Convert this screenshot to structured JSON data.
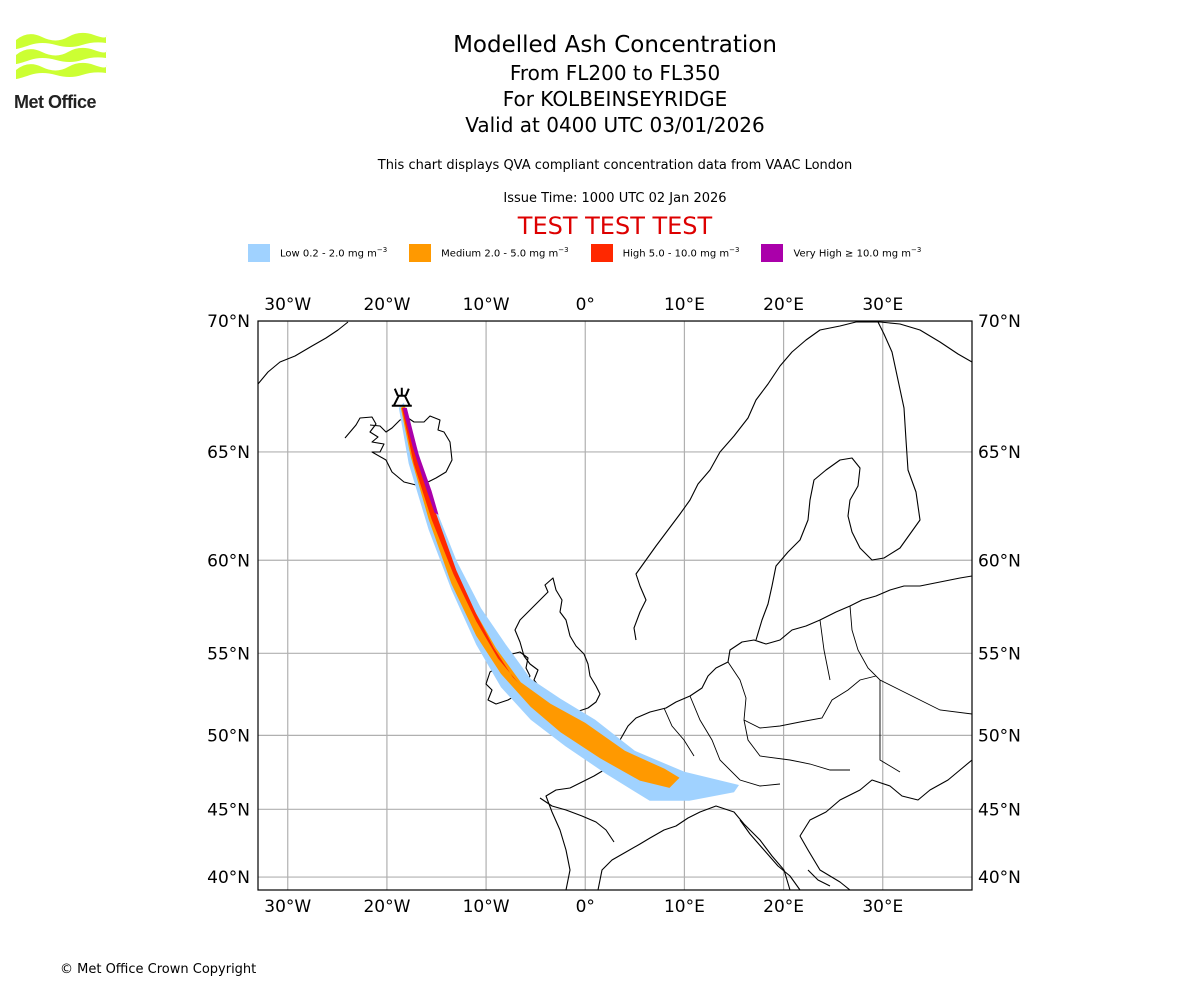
{
  "logo": {
    "text": "Met Office",
    "color": "#ccff33"
  },
  "header": {
    "title": "Modelled Ash Concentration",
    "levels": "From FL200 to FL350",
    "volcano": "For KOLBEINSEYRIDGE",
    "valid": "Valid at 0400 UTC 03/01/2026",
    "description": "This chart displays QVA compliant concentration data from VAAC London",
    "issue_time": "Issue Time: 1000 UTC 02 Jan 2026",
    "test_banner": "TEST TEST TEST"
  },
  "legend": [
    {
      "label": "Low 0.2 - 2.0 mg m",
      "unit_exp": "−3",
      "color": "#a0d2ff"
    },
    {
      "label": "Medium 2.0 - 5.0 mg m",
      "unit_exp": "−3",
      "color": "#ff9900"
    },
    {
      "label": "High 5.0 - 10.0 mg m",
      "unit_exp": "−3",
      "color": "#ff2800"
    },
    {
      "label": "Very High  ≥  10.0 mg m",
      "unit_exp": "−3",
      "color": "#aa00aa"
    }
  ],
  "map": {
    "lon_range": [
      -33,
      39
    ],
    "lat_range": [
      39,
      70
    ],
    "lon_ticks": [
      {
        "value": -30,
        "label": "30°W"
      },
      {
        "value": -20,
        "label": "20°W"
      },
      {
        "value": -10,
        "label": "10°W"
      },
      {
        "value": 0,
        "label": "0°"
      },
      {
        "value": 10,
        "label": "10°E"
      },
      {
        "value": 20,
        "label": "20°E"
      },
      {
        "value": 30,
        "label": "30°E"
      }
    ],
    "lat_ticks": [
      {
        "value": 70,
        "label": "70°N"
      },
      {
        "value": 65,
        "label": "65°N"
      },
      {
        "value": 60,
        "label": "60°N"
      },
      {
        "value": 55,
        "label": "55°N"
      },
      {
        "value": 50,
        "label": "50°N"
      },
      {
        "value": 45,
        "label": "45°N"
      },
      {
        "value": 40,
        "label": "40°N"
      }
    ],
    "volcano_location": {
      "lat": 67.2,
      "lon": -18.5,
      "icon": "volcano-icon"
    },
    "plume": {
      "low": [
        [
          -18.3,
          67.0
        ],
        [
          -17.2,
          65.5
        ],
        [
          -15.5,
          63.0
        ],
        [
          -13.0,
          60.0
        ],
        [
          -10.5,
          57.5
        ],
        [
          -8.0,
          55.5
        ],
        [
          -5.5,
          53.5
        ],
        [
          -2.5,
          52.3
        ],
        [
          1.0,
          51.0
        ],
        [
          5.0,
          49.0
        ],
        [
          10.0,
          47.6
        ],
        [
          15.5,
          46.7
        ],
        [
          15.0,
          46.2
        ],
        [
          10.5,
          45.6
        ],
        [
          6.5,
          45.6
        ],
        [
          2.0,
          47.5
        ],
        [
          -2.0,
          49.3
        ],
        [
          -5.5,
          51.0
        ],
        [
          -8.5,
          53.0
        ],
        [
          -11.0,
          55.5
        ],
        [
          -13.5,
          58.5
        ],
        [
          -15.8,
          61.5
        ],
        [
          -17.8,
          64.5
        ],
        [
          -18.8,
          66.8
        ]
      ],
      "medium": [
        [
          -18.2,
          66.9
        ],
        [
          -17.3,
          65.3
        ],
        [
          -15.7,
          62.8
        ],
        [
          -13.5,
          59.8
        ],
        [
          -11.3,
          57.5
        ],
        [
          -9.0,
          55.3
        ],
        [
          -6.5,
          53.3
        ],
        [
          -3.5,
          52.0
        ],
        [
          0.0,
          50.8
        ],
        [
          4.0,
          49.0
        ],
        [
          8.0,
          47.8
        ],
        [
          9.5,
          47.2
        ],
        [
          8.5,
          46.5
        ],
        [
          5.5,
          47.0
        ],
        [
          1.5,
          48.5
        ],
        [
          -2.5,
          50.2
        ],
        [
          -5.5,
          51.8
        ],
        [
          -8.5,
          53.8
        ],
        [
          -11.0,
          56.0
        ],
        [
          -13.5,
          58.8
        ],
        [
          -15.8,
          62.0
        ],
        [
          -17.6,
          64.8
        ],
        [
          -18.6,
          66.8
        ]
      ],
      "high": [
        [
          -18.1,
          66.8
        ],
        [
          -16.8,
          64.8
        ],
        [
          -15.0,
          62.2
        ],
        [
          -13.0,
          59.5
        ],
        [
          -11.0,
          57.2
        ],
        [
          -9.2,
          55.3
        ],
        [
          -7.3,
          53.6
        ],
        [
          -6.0,
          52.8
        ],
        [
          -6.8,
          53.3
        ],
        [
          -8.8,
          54.7
        ],
        [
          -11.0,
          56.8
        ],
        [
          -13.3,
          59.3
        ],
        [
          -15.5,
          62.0
        ],
        [
          -17.3,
          64.5
        ],
        [
          -18.5,
          66.8
        ]
      ],
      "very_high": [
        [
          -18.0,
          66.8
        ],
        [
          -16.8,
          64.9
        ],
        [
          -15.5,
          63.3
        ],
        [
          -14.8,
          62.2
        ],
        [
          -15.2,
          62.3
        ],
        [
          -16.2,
          63.6
        ],
        [
          -17.4,
          65.2
        ],
        [
          -18.4,
          66.8
        ]
      ]
    },
    "gridline_color": "#b0b0b0"
  },
  "footer": {
    "copyright": "© Met Office Crown Copyright"
  }
}
